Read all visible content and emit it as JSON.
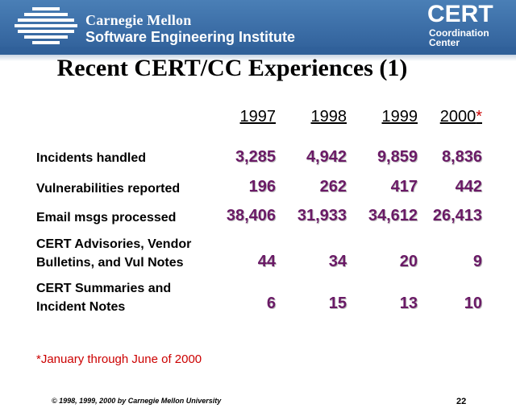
{
  "header": {
    "org_line1": "Carnegie Mellon",
    "org_line2": "Software Engineering Institute",
    "cert_logo": "CERT",
    "cert_sub1": "Coordination",
    "cert_sub2": "Center",
    "logo_icon": "cmu-striped-globe-icon",
    "bg_color": "#3b6da6"
  },
  "title": "Recent CERT/CC Experiences (1)",
  "table": {
    "years": [
      "1997",
      "1998",
      "1999",
      "2000"
    ],
    "year_star": "*",
    "rows": [
      {
        "label1": "Incidents handled",
        "label2": "",
        "values": [
          "3,285",
          "4,942",
          "9,859",
          "8,836"
        ]
      },
      {
        "label1": "Vulnerabilities reported",
        "label2": "",
        "values": [
          "196",
          "262",
          "417",
          "442"
        ]
      },
      {
        "label1": "Email msgs processed",
        "label2": "",
        "values": [
          "38,406",
          "31,933",
          "34,612",
          "26,413"
        ]
      },
      {
        "label1": "CERT Advisories, Vendor",
        "label2": "Bulletins, and Vul Notes",
        "values": [
          "44",
          "34",
          "20",
          "9"
        ]
      },
      {
        "label1": "CERT Summaries and",
        "label2": "Incident Notes",
        "values": [
          "6",
          "15",
          "13",
          "10"
        ]
      }
    ],
    "value_color": "#6a1a66"
  },
  "footnote": "*January through June of 2000",
  "copyright": "© 1998, 1999, 2000 by Carnegie Mellon University",
  "page_number": "22"
}
